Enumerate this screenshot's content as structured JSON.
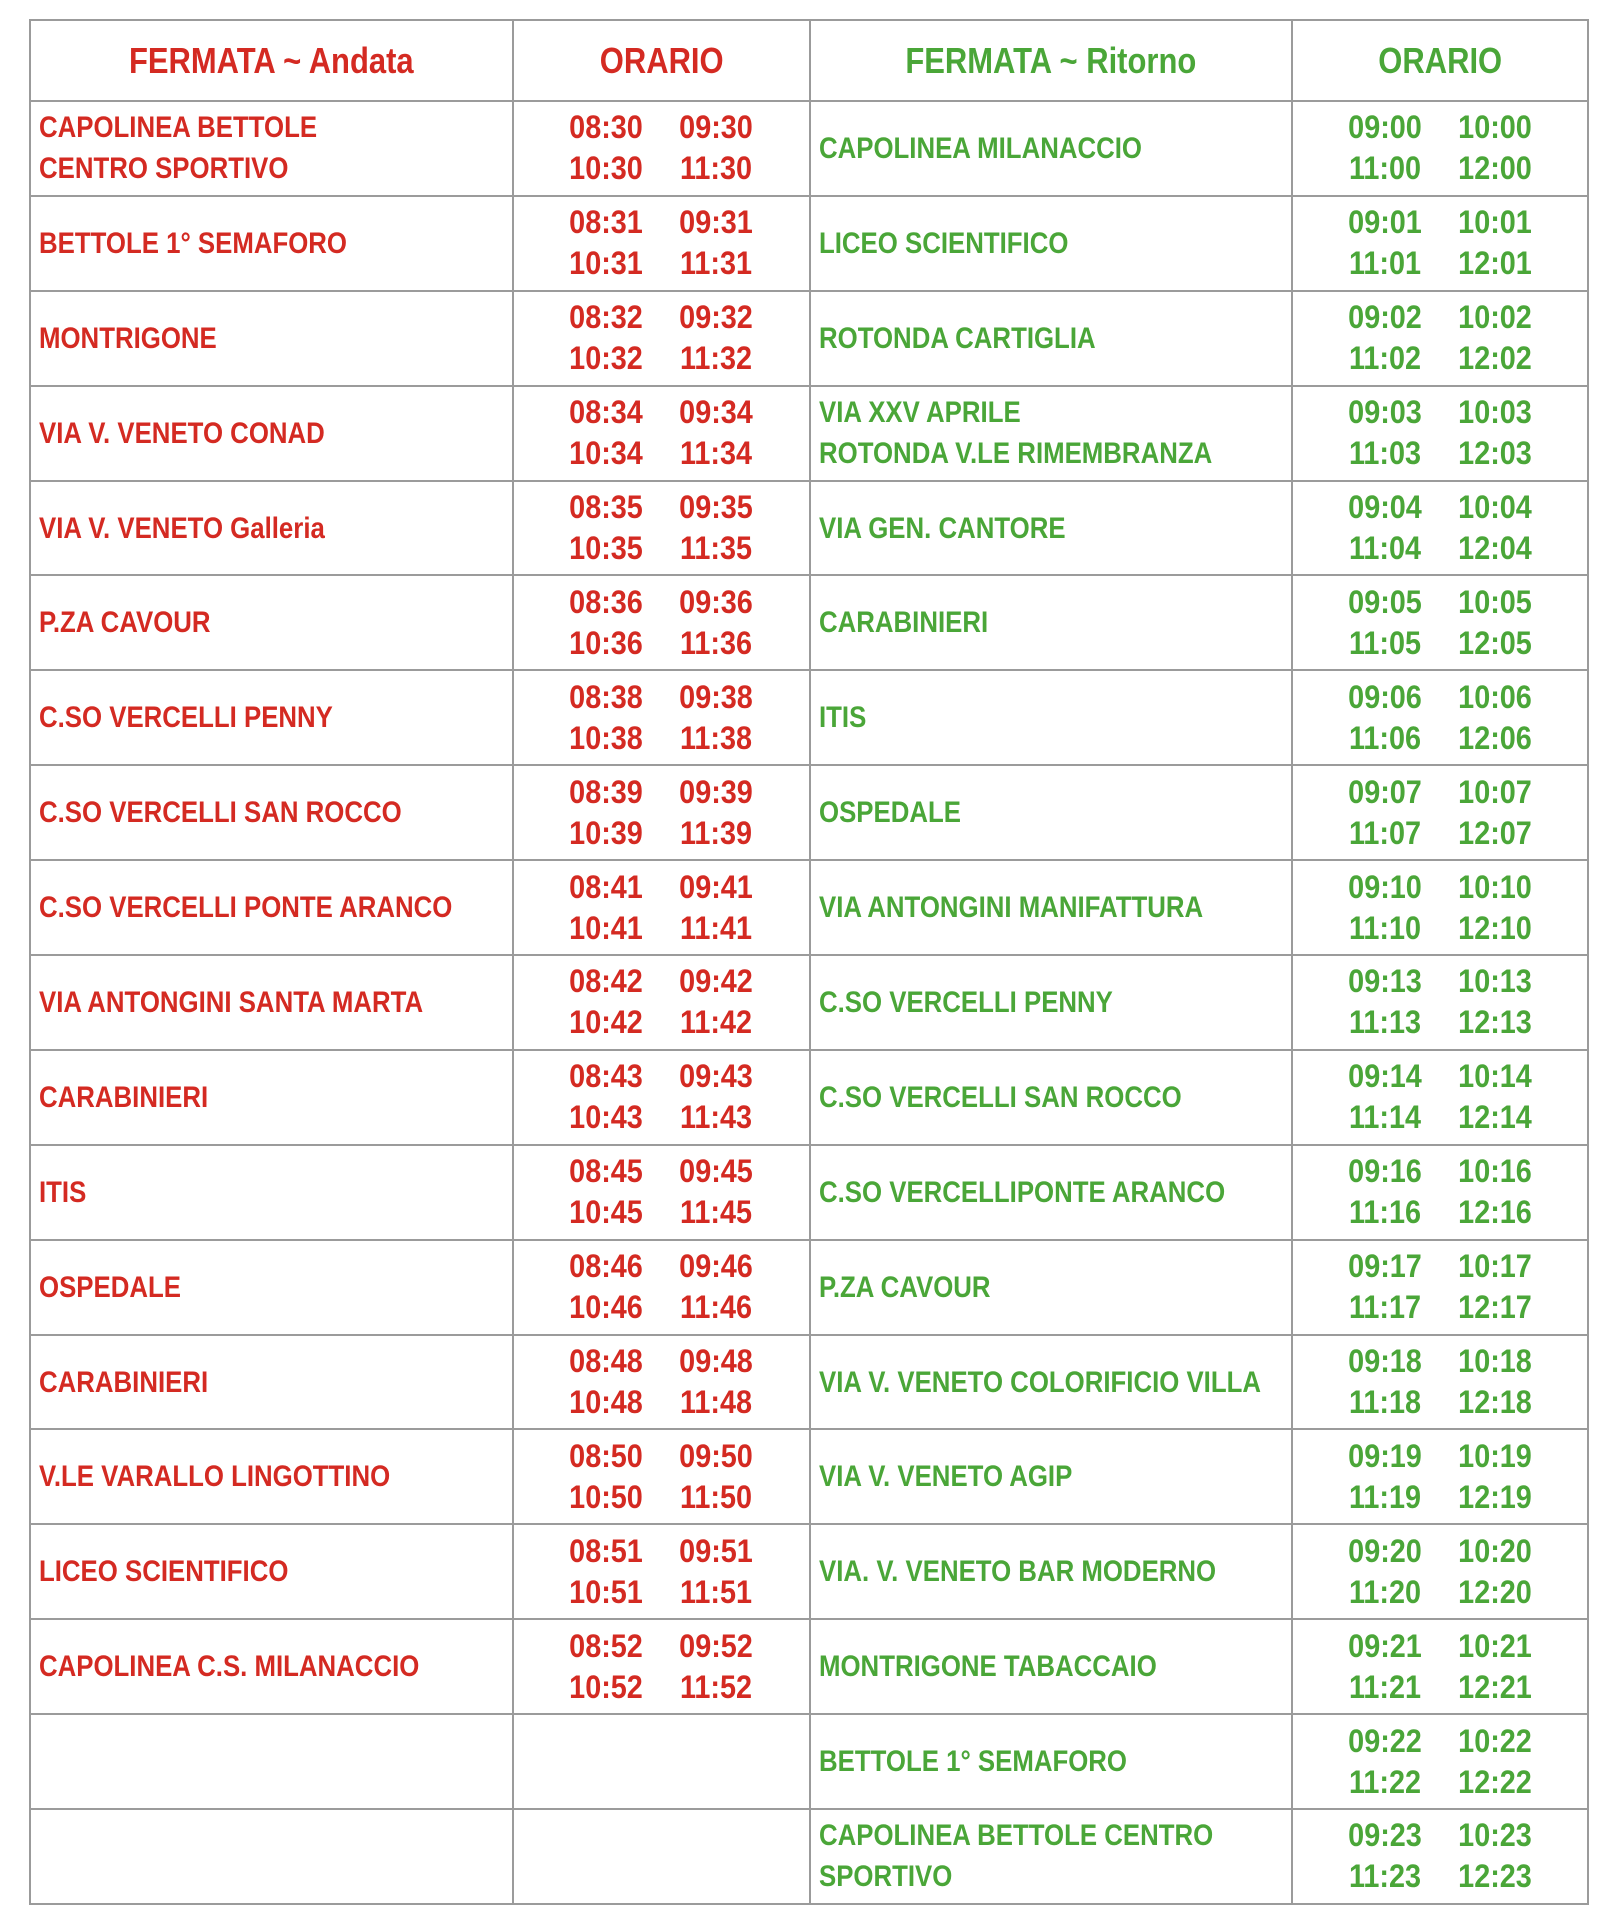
{
  "header": {
    "stop_andata": "FERMATA ~ Andata",
    "orario_andata": "ORARIO",
    "stop_ritorno": "FERMATA ~ Ritorno",
    "orario_ritorno": "ORARIO"
  },
  "colors": {
    "andata": "#d42a22",
    "ritorno": "#4aa638",
    "border": "#9b9b9b"
  },
  "rows": [
    {
      "andata_stop": "CAPOLINEA BETTOLE\nCENTRO SPORTIVO",
      "andata_times": [
        "08:30",
        "09:30",
        "10:30",
        "11:30"
      ],
      "ritorno_stop": "CAPOLINEA MILANACCIO",
      "ritorno_times": [
        "09:00",
        "10:00",
        "11:00",
        "12:00"
      ]
    },
    {
      "andata_stop": "BETTOLE 1° SEMAFORO",
      "andata_times": [
        "08:31",
        "09:31",
        "10:31",
        "11:31"
      ],
      "ritorno_stop": "LICEO SCIENTIFICO",
      "ritorno_times": [
        "09:01",
        "10:01",
        "11:01",
        "12:01"
      ]
    },
    {
      "andata_stop": "MONTRIGONE",
      "andata_times": [
        "08:32",
        "09:32",
        "10:32",
        "11:32"
      ],
      "ritorno_stop": "ROTONDA CARTIGLIA",
      "ritorno_times": [
        "09:02",
        "10:02",
        "11:02",
        "12:02"
      ]
    },
    {
      "andata_stop": "VIA V. VENETO CONAD",
      "andata_times": [
        "08:34",
        "09:34",
        "10:34",
        "11:34"
      ],
      "ritorno_stop": "VIA XXV APRILE\nROTONDA V.LE RIMEMBRANZA",
      "ritorno_times": [
        "09:03",
        "10:03",
        "11:03",
        "12:03"
      ]
    },
    {
      "andata_stop": "VIA V. VENETO Galleria",
      "andata_times": [
        "08:35",
        "09:35",
        "10:35",
        "11:35"
      ],
      "ritorno_stop": "VIA GEN. CANTORE",
      "ritorno_times": [
        "09:04",
        "10:04",
        "11:04",
        "12:04"
      ]
    },
    {
      "andata_stop": "P.ZA CAVOUR",
      "andata_times": [
        "08:36",
        "09:36",
        "10:36",
        "11:36"
      ],
      "ritorno_stop": "CARABINIERI",
      "ritorno_times": [
        "09:05",
        "10:05",
        "11:05",
        "12:05"
      ]
    },
    {
      "andata_stop": "C.SO VERCELLI PENNY",
      "andata_times": [
        "08:38",
        "09:38",
        "10:38",
        "11:38"
      ],
      "ritorno_stop": "ITIS",
      "ritorno_times": [
        "09:06",
        "10:06",
        "11:06",
        "12:06"
      ]
    },
    {
      "andata_stop": "C.SO VERCELLI SAN ROCCO",
      "andata_times": [
        "08:39",
        "09:39",
        "10:39",
        "11:39"
      ],
      "ritorno_stop": "OSPEDALE",
      "ritorno_times": [
        "09:07",
        "10:07",
        "11:07",
        "12:07"
      ]
    },
    {
      "andata_stop": "C.SO VERCELLI PONTE ARANCO",
      "andata_times": [
        "08:41",
        "09:41",
        "10:41",
        "11:41"
      ],
      "ritorno_stop": "VIA ANTONGINI MANIFATTURA",
      "ritorno_times": [
        "09:10",
        "10:10",
        "11:10",
        "12:10"
      ]
    },
    {
      "andata_stop": "VIA ANTONGINI SANTA MARTA",
      "andata_times": [
        "08:42",
        "09:42",
        "10:42",
        "11:42"
      ],
      "ritorno_stop": "C.SO VERCELLI PENNY",
      "ritorno_times": [
        "09:13",
        "10:13",
        "11:13",
        "12:13"
      ]
    },
    {
      "andata_stop": "CARABINIERI",
      "andata_times": [
        "08:43",
        "09:43",
        "10:43",
        "11:43"
      ],
      "ritorno_stop": "C.SO VERCELLI SAN ROCCO",
      "ritorno_times": [
        "09:14",
        "10:14",
        "11:14",
        "12:14"
      ]
    },
    {
      "andata_stop": "ITIS",
      "andata_times": [
        "08:45",
        "09:45",
        "10:45",
        "11:45"
      ],
      "ritorno_stop": "C.SO VERCELLIPONTE ARANCO",
      "ritorno_times": [
        "09:16",
        "10:16",
        "11:16",
        "12:16"
      ]
    },
    {
      "andata_stop": "OSPEDALE",
      "andata_times": [
        "08:46",
        "09:46",
        "10:46",
        "11:46"
      ],
      "ritorno_stop": "P.ZA CAVOUR",
      "ritorno_times": [
        "09:17",
        "10:17",
        "11:17",
        "12:17"
      ]
    },
    {
      "andata_stop": "CARABINIERI",
      "andata_times": [
        "08:48",
        "09:48",
        "10:48",
        "11:48"
      ],
      "ritorno_stop": "VIA V. VENETO COLORIFICIO VILLA",
      "ritorno_times": [
        "09:18",
        "10:18",
        "11:18",
        "12:18"
      ]
    },
    {
      "andata_stop": "V.LE VARALLO LINGOTTINO",
      "andata_times": [
        "08:50",
        "09:50",
        "10:50",
        "11:50"
      ],
      "ritorno_stop": "VIA V. VENETO AGIP",
      "ritorno_times": [
        "09:19",
        "10:19",
        "11:19",
        "12:19"
      ]
    },
    {
      "andata_stop": "LICEO SCIENTIFICO",
      "andata_times": [
        "08:51",
        "09:51",
        "10:51",
        "11:51"
      ],
      "ritorno_stop": "VIA. V. VENETO BAR MODERNO",
      "ritorno_times": [
        "09:20",
        "10:20",
        "11:20",
        "12:20"
      ]
    },
    {
      "andata_stop": "CAPOLINEA C.S. MILANACCIO",
      "andata_times": [
        "08:52",
        "09:52",
        "10:52",
        "11:52"
      ],
      "ritorno_stop": "MONTRIGONE TABACCAIO",
      "ritorno_times": [
        "09:21",
        "10:21",
        "11:21",
        "12:21"
      ]
    },
    {
      "andata_stop": "",
      "andata_times": [],
      "ritorno_stop": "BETTOLE 1° SEMAFORO",
      "ritorno_times": [
        "09:22",
        "10:22",
        "11:22",
        "12:22"
      ]
    },
    {
      "andata_stop": "",
      "andata_times": [],
      "ritorno_stop": "CAPOLINEA BETTOLE CENTRO\nSPORTIVO",
      "ritorno_times": [
        "09:23",
        "10:23",
        "11:23",
        "12:23"
      ]
    }
  ]
}
